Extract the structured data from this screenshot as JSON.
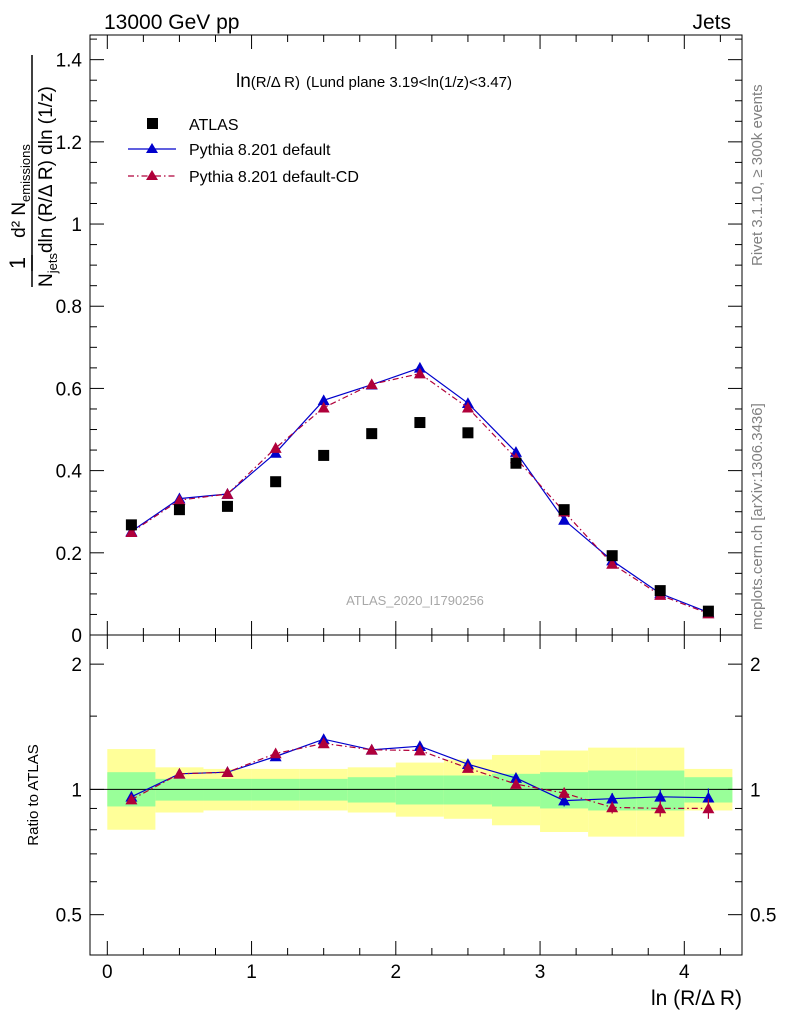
{
  "header": {
    "left": "13000 GeV pp",
    "right": "Jets"
  },
  "side_labels": {
    "rivet": "Rivet 3.1.10, ≥ 300k events",
    "mcplots": "mcplots.cern.ch [arXiv:1306.3436]"
  },
  "watermark": "ATLAS_2020_I1790256",
  "colors": {
    "atlas": "#000000",
    "pythia_default": "#0000cc",
    "pythia_cd": "#b0003a",
    "band_inner": "#99ff99",
    "band_outer": "#ffff99"
  },
  "chart_data": [
    {
      "type": "scatter",
      "panel": "main",
      "title": "ln(R/Δ R) (Lund plane 3.19<ln(1/z)<3.47)",
      "title_parts": {
        "main": "ln",
        "arg": "(R/Δ R)",
        "rest": "(Lund plane 3.19<ln(1/z)<3.47)"
      },
      "ylabel": {
        "numerator": "d² N",
        "numerator_sub": "emissions",
        "denominator": "N",
        "denominator_sub": "jets",
        "denominator_rest": "dln (R/Δ R) dln (1/z)",
        "prefactor": "1"
      },
      "xlim": [
        -0.12,
        4.4
      ],
      "ylim": [
        0,
        1.46
      ],
      "yticks": [
        "0",
        "0.2",
        "0.4",
        "0.6",
        "0.8",
        "1",
        "1.2",
        "1.4"
      ],
      "ytick_values": [
        0,
        0.2,
        0.4,
        0.6,
        0.8,
        1,
        1.2,
        1.4
      ],
      "legend_position": "top-left",
      "x_edges": [
        0,
        0.3333,
        0.6667,
        1.0,
        1.3333,
        1.6667,
        2.0,
        2.3333,
        2.6667,
        3.0,
        3.3333,
        3.6667,
        4.0,
        4.3333
      ],
      "x": [
        0.167,
        0.5,
        0.833,
        1.167,
        1.5,
        1.833,
        2.167,
        2.5,
        2.833,
        3.167,
        3.5,
        3.833,
        4.167
      ],
      "series": [
        {
          "name": "ATLAS",
          "marker": "square",
          "values": [
            0.268,
            0.305,
            0.313,
            0.373,
            0.437,
            0.49,
            0.517,
            0.492,
            0.418,
            0.305,
            0.193,
            0.108,
            0.058
          ]
        },
        {
          "name": "Pythia 8.201 default",
          "marker": "triangle",
          "line": "solid",
          "values": [
            0.252,
            0.332,
            0.343,
            0.443,
            0.571,
            0.609,
            0.65,
            0.564,
            0.445,
            0.28,
            0.181,
            0.101,
            0.055
          ],
          "errors": [
            0.004,
            0.005,
            0.005,
            0.006,
            0.008,
            0.008,
            0.009,
            0.008,
            0.007,
            0.005,
            0.004,
            0.003,
            0.002
          ]
        },
        {
          "name": "Pythia 8.201 default-CD",
          "marker": "triangle",
          "line": "dashdot",
          "values": [
            0.25,
            0.328,
            0.343,
            0.455,
            0.553,
            0.61,
            0.636,
            0.553,
            0.43,
            0.3,
            0.173,
            0.097,
            0.052
          ],
          "errors": [
            0.004,
            0.005,
            0.005,
            0.006,
            0.008,
            0.008,
            0.009,
            0.008,
            0.007,
            0.005,
            0.004,
            0.003,
            0.002
          ]
        }
      ]
    },
    {
      "type": "line",
      "panel": "ratio",
      "ylabel": "Ratio to ATLAS",
      "xlabel": "ln (R/Δ R)",
      "xlim": [
        -0.12,
        4.4
      ],
      "ylim": [
        0.4,
        2.35
      ],
      "log_y": true,
      "xticks": [
        "0",
        "1",
        "2",
        "3",
        "4"
      ],
      "xtick_values": [
        0,
        1,
        2,
        3,
        4
      ],
      "yticks": [
        "0.5",
        "1",
        "2"
      ],
      "ytick_values": [
        0.5,
        1,
        2
      ],
      "reference": 1,
      "x": [
        0.167,
        0.5,
        0.833,
        1.167,
        1.5,
        1.833,
        2.167,
        2.5,
        2.833,
        3.167,
        3.5,
        3.833,
        4.167
      ],
      "bands": {
        "inner": {
          "lower": [
            0.91,
            0.94,
            0.94,
            0.94,
            0.94,
            0.93,
            0.92,
            0.92,
            0.91,
            0.9,
            0.89,
            0.89,
            0.93
          ],
          "upper": [
            1.1,
            1.06,
            1.06,
            1.06,
            1.06,
            1.07,
            1.08,
            1.08,
            1.09,
            1.1,
            1.11,
            1.11,
            1.07
          ]
        },
        "outer": {
          "lower": [
            0.8,
            0.88,
            0.89,
            0.89,
            0.89,
            0.88,
            0.86,
            0.85,
            0.82,
            0.79,
            0.77,
            0.77,
            0.89
          ],
          "upper": [
            1.25,
            1.13,
            1.12,
            1.12,
            1.12,
            1.13,
            1.16,
            1.18,
            1.21,
            1.24,
            1.26,
            1.26,
            1.12
          ]
        }
      },
      "series": [
        {
          "name": "Pythia 8.201 default",
          "values": [
            0.96,
            1.09,
            1.1,
            1.2,
            1.32,
            1.245,
            1.27,
            1.15,
            1.065,
            0.94,
            0.95,
            0.96,
            0.955
          ],
          "errors": [
            0.02,
            0.02,
            0.02,
            0.02,
            0.02,
            0.02,
            0.02,
            0.02,
            0.02,
            0.03,
            0.03,
            0.04,
            0.05
          ]
        },
        {
          "name": "Pythia 8.201 default-CD",
          "values": [
            0.945,
            1.09,
            1.1,
            1.22,
            1.29,
            1.245,
            1.24,
            1.125,
            1.03,
            0.98,
            0.905,
            0.9,
            0.9
          ],
          "errors": [
            0.02,
            0.02,
            0.02,
            0.02,
            0.02,
            0.02,
            0.02,
            0.02,
            0.02,
            0.03,
            0.03,
            0.04,
            0.05
          ]
        }
      ]
    }
  ]
}
